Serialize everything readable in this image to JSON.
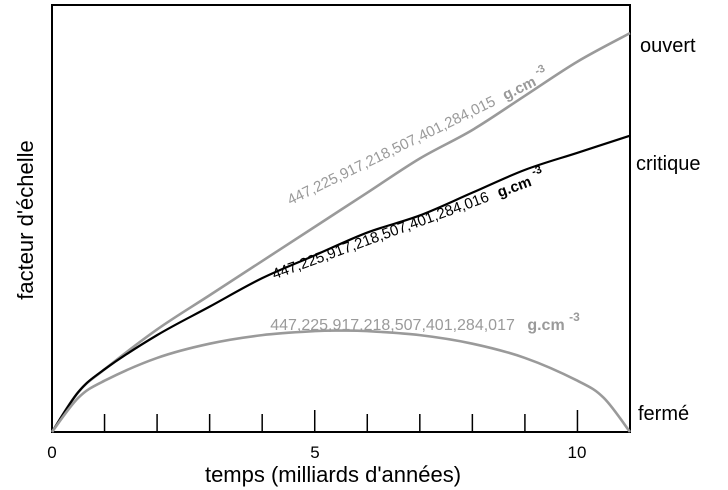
{
  "chart_data": {
    "type": "line",
    "xlabel": "temps (milliards d'années)",
    "ylabel": "facteur d'échelle",
    "xlim": [
      0,
      11
    ],
    "x_ticks": [
      0,
      5,
      10
    ],
    "x_tick_labels": [
      "0",
      "5",
      "10"
    ],
    "y_axis_ticks": false,
    "grid": false,
    "series": [
      {
        "name": "ouvert",
        "density_label": "447,225,917,218,507,401,284,015",
        "unit": "g.cm",
        "unit_exp": "-3",
        "color": "#9a9a9a",
        "x": [
          0,
          0.5,
          1,
          2,
          3,
          4,
          5,
          6,
          7,
          8,
          9,
          10,
          11
        ],
        "y": [
          0,
          0.7,
          1.1,
          1.8,
          2.4,
          3.0,
          3.6,
          4.2,
          4.8,
          5.3,
          5.9,
          6.5,
          7.0
        ]
      },
      {
        "name": "critique",
        "density_label": "447,225,917,218,507,401,284,016",
        "unit": "g.cm",
        "unit_exp": "-3",
        "color": "#000000",
        "x": [
          0,
          0.5,
          1,
          2,
          3,
          4,
          5,
          6,
          7,
          8,
          9,
          10,
          11
        ],
        "y": [
          0,
          0.7,
          1.1,
          1.7,
          2.2,
          2.7,
          3.1,
          3.5,
          3.8,
          4.2,
          4.6,
          4.9,
          5.2
        ]
      },
      {
        "name": "fermé",
        "density_label": "447,225,917,218,507,401,284,017",
        "unit": "g.cm",
        "unit_exp": "-3",
        "color": "#9a9a9a",
        "x": [
          0,
          0.5,
          1,
          2,
          3,
          4,
          5,
          5.5,
          6,
          7,
          8,
          9,
          10,
          10.5,
          11
        ],
        "y": [
          0,
          0.6,
          0.9,
          1.3,
          1.55,
          1.7,
          1.77,
          1.78,
          1.77,
          1.7,
          1.55,
          1.3,
          0.9,
          0.6,
          0
        ]
      }
    ]
  }
}
